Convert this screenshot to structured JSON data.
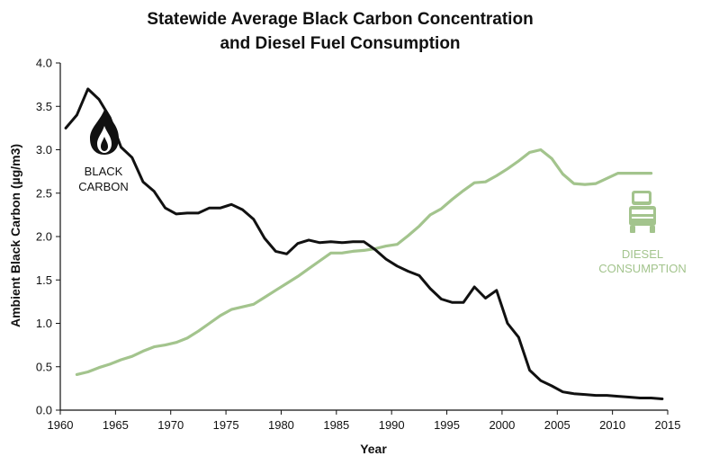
{
  "chart_data": {
    "type": "line",
    "title_lines": [
      "Statewide Average Black Carbon Concentration",
      "and Diesel Fuel Consumption"
    ],
    "xlabel": "Year",
    "ylabel": "Ambient Black Carbon (µg/m3)",
    "xlim": [
      1960,
      2015
    ],
    "ylim": [
      0,
      4
    ],
    "x_ticks": [
      1960,
      1965,
      1970,
      1975,
      1980,
      1985,
      1990,
      1995,
      2000,
      2005,
      2010,
      2015
    ],
    "y_ticks": [
      0.0,
      0.5,
      1.0,
      1.5,
      2.0,
      2.5,
      3.0,
      3.5,
      4.0
    ],
    "x_tick_labels": [
      "1960",
      "1965",
      "1970",
      "1975",
      "1980",
      "1985",
      "1990",
      "1995",
      "2000",
      "2005",
      "2010",
      "2015"
    ],
    "y_tick_labels": [
      "0.0",
      "0.5",
      "1.0",
      "1.5",
      "2.0",
      "2.5",
      "3.0",
      "3.5",
      "4.0"
    ],
    "grid": false,
    "series": [
      {
        "name": "BLACK CARBON",
        "label_lines": [
          "BLACK",
          "CARBON"
        ],
        "color": "#111111",
        "icon": "flame-icon",
        "x": [
          1960.5,
          1961.5,
          1962.5,
          1963.5,
          1964.5,
          1965.5,
          1966.5,
          1967.5,
          1968.5,
          1969.5,
          1970.5,
          1971.5,
          1972.5,
          1973.5,
          1974.5,
          1975.5,
          1976.5,
          1977.5,
          1978.5,
          1979.5,
          1980.5,
          1981.5,
          1982.5,
          1983.5,
          1984.5,
          1985.5,
          1986.5,
          1987.5,
          1988.5,
          1989.5,
          1990.5,
          1991.5,
          1992.5,
          1993.5,
          1994.5,
          1995.5,
          1996.5,
          1997.5,
          1998.5,
          1999.5,
          2000.5,
          2001.5,
          2002.5,
          2003.5,
          2004.5,
          2005.5,
          2006.5,
          2007.5,
          2008.5,
          2009.5,
          2010.5,
          2011.5,
          2012.5,
          2013.5,
          2014.5
        ],
        "values": [
          3.25,
          3.4,
          3.7,
          3.58,
          3.37,
          3.03,
          2.91,
          2.63,
          2.52,
          2.33,
          2.26,
          2.27,
          2.27,
          2.33,
          2.33,
          2.37,
          2.31,
          2.2,
          1.98,
          1.83,
          1.8,
          1.92,
          1.96,
          1.93,
          1.94,
          1.93,
          1.94,
          1.94,
          1.85,
          1.74,
          1.66,
          1.6,
          1.55,
          1.4,
          1.28,
          1.24,
          1.24,
          1.42,
          1.29,
          1.38,
          1.0,
          0.84,
          0.46,
          0.34,
          0.28,
          0.21,
          0.19,
          0.18,
          0.17,
          0.17,
          0.16,
          0.15,
          0.14,
          0.14,
          0.13
        ]
      },
      {
        "name": "DIESEL CONSUMPTION",
        "label_lines": [
          "DIESEL",
          "CONSUMPTION"
        ],
        "color": "#a3c48d",
        "icon": "truck-icon",
        "x": [
          1961.5,
          1962.5,
          1963.5,
          1964.5,
          1965.5,
          1966.5,
          1967.5,
          1968.5,
          1969.5,
          1970.5,
          1971.5,
          1972.5,
          1973.5,
          1974.5,
          1975.5,
          1976.5,
          1977.5,
          1978.5,
          1979.5,
          1980.5,
          1981.5,
          1982.5,
          1983.5,
          1984.5,
          1985.5,
          1986.5,
          1987.5,
          1988.5,
          1989.5,
          1990.5,
          1991.5,
          1992.5,
          1993.5,
          1994.5,
          1995.5,
          1996.5,
          1997.5,
          1998.5,
          1999.5,
          2000.5,
          2001.5,
          2002.5,
          2003.5,
          2004.5,
          2005.5,
          2006.5,
          2007.5,
          2008.5,
          2009.5,
          2010.5,
          2011.5,
          2012.5,
          2013.5
        ],
        "values": [
          0.41,
          0.44,
          0.49,
          0.53,
          0.58,
          0.62,
          0.68,
          0.73,
          0.75,
          0.78,
          0.83,
          0.91,
          1.0,
          1.09,
          1.16,
          1.19,
          1.22,
          1.3,
          1.38,
          1.46,
          1.54,
          1.63,
          1.72,
          1.81,
          1.81,
          1.83,
          1.84,
          1.86,
          1.89,
          1.91,
          2.01,
          2.12,
          2.25,
          2.32,
          2.43,
          2.53,
          2.62,
          2.63,
          2.7,
          2.78,
          2.87,
          2.97,
          3.0,
          2.9,
          2.72,
          2.61,
          2.6,
          2.61,
          2.67,
          2.73,
          2.73,
          2.73,
          2.73
        ]
      }
    ]
  }
}
